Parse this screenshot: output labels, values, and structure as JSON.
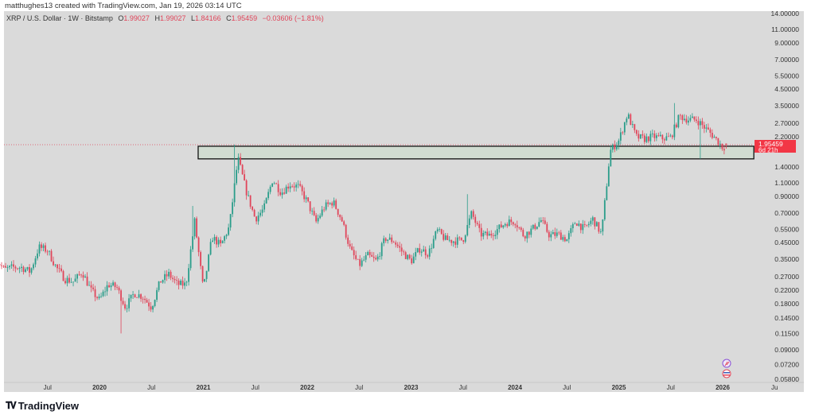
{
  "credit": "matthughes13 created with TradingView.com, Jan 19, 2026 03:14 UTC",
  "legend": {
    "symbol": "XRP / U.S. Dollar · 1W · Bitstamp",
    "o_label": "O",
    "o": "1.99027",
    "h_label": "H",
    "h": "1.99027",
    "l_label": "L",
    "l": "1.84166",
    "c_label": "C",
    "c": "1.95459",
    "change": "−0.03606 (−1.81%)"
  },
  "price_label": {
    "price": "1.95459",
    "countdown": "6d 21h"
  },
  "branding": {
    "logo_text": "TradingView"
  },
  "colors": {
    "up": "#2a9d8a",
    "down": "#e0455a",
    "background": "#dadada",
    "zone_fill": "#cfdccf",
    "zone_border": "#111111"
  },
  "icons": [
    "tradingview-logo-icon",
    "sync-icon",
    "us-flag-icon"
  ],
  "chart_data": {
    "type": "candlestick",
    "title": "XRP / U.S. Dollar · 1W · Bitstamp",
    "y_scale": "log",
    "ylim": [
      0.058,
      14.0
    ],
    "y_ticks": [
      "14.00000",
      "11.00000",
      "9.00000",
      "7.00000",
      "5.50000",
      "4.50000",
      "3.50000",
      "2.70000",
      "2.20000",
      "1.40000",
      "1.10000",
      "0.90000",
      "0.70000",
      "0.55000",
      "0.45000",
      "0.35000",
      "0.27000",
      "0.22000",
      "0.18000",
      "0.14500",
      "0.11500",
      "0.09000",
      "0.07200",
      "0.05800"
    ],
    "x_ticks": [
      {
        "label": "Jul",
        "date": 2019.5
      },
      {
        "label": "2020",
        "date": 2020.0
      },
      {
        "label": "Jul",
        "date": 2020.5
      },
      {
        "label": "2021",
        "date": 2021.0
      },
      {
        "label": "Jul",
        "date": 2021.5
      },
      {
        "label": "2022",
        "date": 2022.0
      },
      {
        "label": "Jul",
        "date": 2022.5
      },
      {
        "label": "2023",
        "date": 2023.0
      },
      {
        "label": "Jul",
        "date": 2023.5
      },
      {
        "label": "2024",
        "date": 2024.0
      },
      {
        "label": "Jul",
        "date": 2024.5
      },
      {
        "label": "2025",
        "date": 2025.0
      },
      {
        "label": "Jul",
        "date": 2025.5
      },
      {
        "label": "2026",
        "date": 2026.0
      },
      {
        "label": "Ju",
        "date": 2026.5
      }
    ],
    "x_range": [
      2019.0,
      2026.75
    ],
    "grid": false,
    "start_price": 0.35,
    "monthly_close_from_2019_01": [
      0.3,
      0.31,
      0.31,
      0.29,
      0.42,
      0.4,
      0.31,
      0.26,
      0.25,
      0.29,
      0.22,
      0.19,
      0.24,
      0.23,
      0.17,
      0.21,
      0.2,
      0.17,
      0.25,
      0.28,
      0.24,
      0.24,
      0.62,
      0.22,
      0.49,
      0.43,
      0.57,
      1.6,
      0.95,
      0.64,
      0.75,
      1.16,
      0.95,
      1.08,
      1.04,
      0.83,
      0.61,
      0.77,
      0.83,
      0.63,
      0.4,
      0.32,
      0.37,
      0.34,
      0.48,
      0.46,
      0.39,
      0.34,
      0.41,
      0.38,
      0.54,
      0.47,
      0.46,
      0.47,
      0.7,
      0.51,
      0.5,
      0.55,
      0.61,
      0.62,
      0.5,
      0.55,
      0.63,
      0.5,
      0.51,
      0.47,
      0.62,
      0.55,
      0.64,
      0.51,
      1.78,
      2.08,
      3.1,
      2.2,
      2.13,
      2.21,
      2.15,
      2.18,
      3.0,
      2.85,
      2.84,
      2.5,
      2.2,
      1.88,
      1.95
    ],
    "notable_wicks": [
      {
        "date": 2020.2,
        "low": 0.115
      },
      {
        "date": 2020.9,
        "high": 0.78
      },
      {
        "date": 2021.3,
        "high": 1.96
      },
      {
        "date": 2023.54,
        "high": 0.93
      },
      {
        "date": 2025.53,
        "high": 3.65
      },
      {
        "date": 2025.78,
        "low": 1.58
      }
    ],
    "last_candle": {
      "open": 1.99027,
      "high": 1.99027,
      "low": 1.84166,
      "close": 1.95459
    },
    "zone": {
      "low": 1.58,
      "high": 1.91,
      "from": 2020.95,
      "to": 2026.3
    },
    "current_price": 1.95459
  }
}
